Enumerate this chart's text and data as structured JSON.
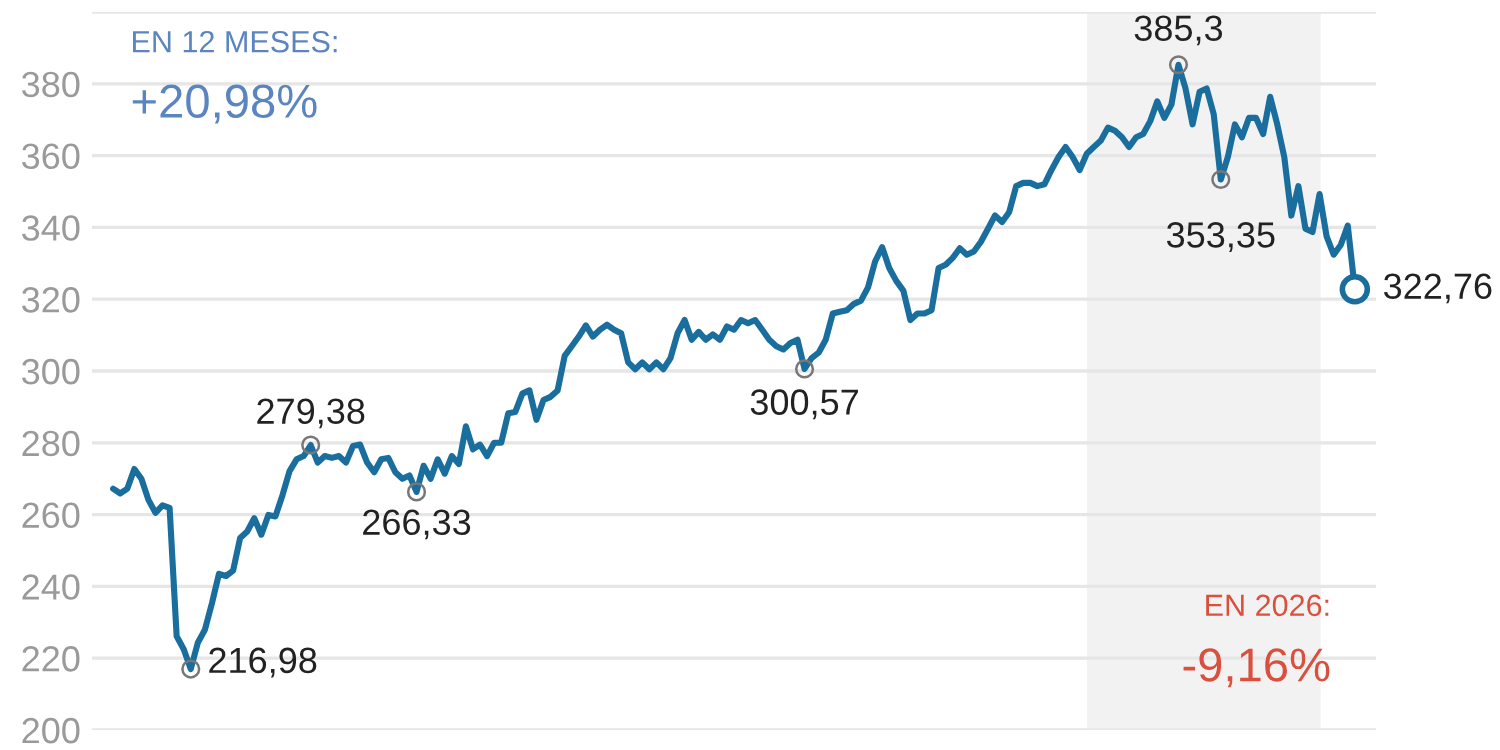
{
  "chart_data": {
    "type": "line",
    "categories": [
      null,
      null,
      null,
      null,
      null,
      null,
      null,
      null,
      null,
      null,
      null,
      null,
      null,
      null,
      null,
      null,
      null,
      null,
      null,
      null,
      null,
      null,
      null,
      null,
      null,
      null,
      null,
      null,
      null,
      null,
      null,
      null,
      null,
      null,
      null,
      null,
      null,
      null,
      null,
      null,
      null,
      null,
      null,
      null,
      null,
      null,
      null,
      null,
      null,
      null,
      null,
      null,
      null,
      null,
      null,
      null,
      null,
      null,
      null,
      null,
      null,
      null,
      null,
      null,
      null,
      null,
      null,
      null,
      null,
      null,
      null,
      null,
      null,
      null,
      null,
      null,
      null,
      null,
      null,
      null,
      null,
      null,
      null,
      null,
      null,
      null,
      null,
      null,
      null,
      null,
      null,
      null,
      null,
      null,
      null,
      null,
      null,
      null,
      null,
      null,
      null,
      null,
      null,
      null,
      null,
      null,
      null,
      null,
      null,
      null,
      null,
      null,
      null,
      null,
      null,
      null,
      null,
      null,
      null,
      null,
      null,
      null,
      null,
      null,
      null,
      null,
      null,
      null,
      null,
      null,
      null,
      null,
      null,
      null,
      null,
      null,
      null,
      null,
      null,
      null,
      null,
      null,
      null,
      null,
      null,
      null,
      null,
      null,
      null,
      null,
      null,
      null,
      null,
      null,
      null,
      null,
      null,
      null,
      null,
      null,
      null,
      null,
      null,
      null,
      null,
      null,
      null,
      null,
      null,
      null,
      null,
      null,
      null,
      null,
      null,
      null,
      null
    ],
    "series": [
      {
        "color": "#1a6e9e",
        "values": [
          267.2,
          265.9,
          267.2,
          272.7,
          270,
          264.1,
          260.5,
          262.6,
          261.9,
          226.1,
          222.5,
          216.98,
          224.3,
          227.9,
          235.3,
          243.5,
          242.9,
          244.4,
          253.5,
          255.3,
          259,
          254.4,
          259.9,
          259.5,
          265.4,
          272.1,
          275.4,
          276.3,
          279.38,
          274.5,
          276.3,
          275.8,
          276.3,
          274.5,
          279.1,
          279.5,
          274.5,
          271.8,
          275.4,
          275.8,
          271.8,
          270,
          270.9,
          266.33,
          273.6,
          270,
          275.4,
          271.4,
          276.3,
          274.1,
          284.6,
          278.2,
          279.5,
          276.3,
          280,
          280,
          288.2,
          288.6,
          293.7,
          294.6,
          286.4,
          291.9,
          292.8,
          294.6,
          304.2,
          306.9,
          309.6,
          312.7,
          309.6,
          311.5,
          312.9,
          311.5,
          310.5,
          302.4,
          300.5,
          302.4,
          300.5,
          302.4,
          300.5,
          303.6,
          310.5,
          314.2,
          308.7,
          310.9,
          308.7,
          310.2,
          308.7,
          312.4,
          311.5,
          314.2,
          313.3,
          314.2,
          311.5,
          308.7,
          306.9,
          306,
          307.8,
          308.7,
          300.57,
          303.6,
          305.1,
          308.7,
          316,
          316.5,
          316.9,
          318.7,
          319.6,
          323.3,
          330.5,
          334.5,
          328.7,
          325.1,
          322.4,
          314.2,
          316,
          316,
          316.9,
          328.7,
          329.6,
          331.5,
          334.2,
          332.4,
          333.3,
          336,
          339.6,
          343.3,
          341.5,
          344.2,
          351.5,
          352.4,
          352.4,
          351.5,
          352,
          356,
          359.6,
          362.4,
          359.6,
          356,
          360.5,
          362.4,
          364.2,
          367.8,
          366.9,
          365.1,
          362.4,
          365.1,
          366,
          369.6,
          375.1,
          370.5,
          374.2,
          385.3,
          378.7,
          368.7,
          377.8,
          378.7,
          371.5,
          353.35,
          359.6,
          368.7,
          365.1,
          370.5,
          370.5,
          366,
          376.4,
          368.7,
          359.6,
          343.3,
          351.5,
          339.6,
          338.7,
          349.3,
          337.5,
          332.4,
          335.1,
          340.5,
          322.76
        ]
      }
    ],
    "ylim": [
      200,
      400
    ],
    "yticks": [
      200,
      220,
      240,
      260,
      280,
      300,
      320,
      340,
      360,
      380,
      {
        "value": 400,
        "label": null
      }
    ],
    "grid": "y",
    "line_style": "solid",
    "annotations": [
      "EN 12 MESES:",
      "+20,98%",
      "EN 2026:",
      "-9,16%",
      "216,98",
      {
        "text": "279,38",
        "y": 279.38
      },
      {
        "text": "266,33",
        "y": 266.33
      },
      {
        "text": "300,57",
        "y": 300.57
      },
      {
        "text": "385,3",
        "y": 385.3
      },
      {
        "text": "353,35",
        "y": 353.35
      },
      "322,76"
    ]
  }
}
